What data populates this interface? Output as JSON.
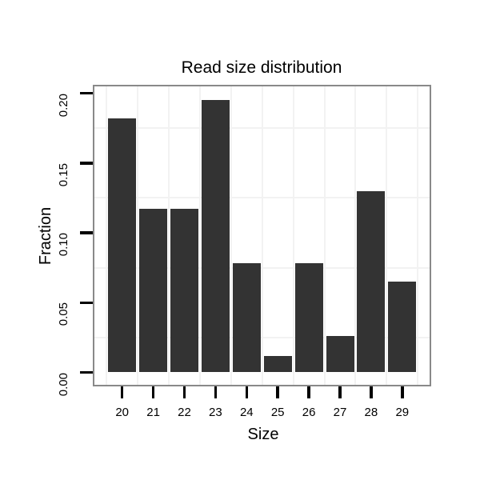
{
  "figure": {
    "background_color": "#ffffff",
    "text_color": "#000000"
  },
  "chart_data": {
    "type": "bar",
    "title": "Read size distribution",
    "xlabel": "Size",
    "ylabel": "Fraction",
    "categories": [
      "20",
      "21",
      "22",
      "23",
      "24",
      "25",
      "26",
      "27",
      "28",
      "29"
    ],
    "values": [
      0.182,
      0.117,
      0.117,
      0.195,
      0.078,
      0.012,
      0.078,
      0.026,
      0.13,
      0.065
    ],
    "x_tick_labels": [
      "20",
      "21",
      "22",
      "23",
      "24",
      "25",
      "26",
      "27",
      "28",
      "29"
    ],
    "y_tick_values": [
      0.0,
      0.05,
      0.1,
      0.15,
      0.2
    ],
    "y_tick_labels": [
      "0.00",
      "0.05",
      "0.10",
      "0.15",
      "0.20"
    ],
    "ylim": [
      -0.01,
      0.205
    ],
    "grid": "minor-only",
    "legend": "none",
    "bar_color": "#333333",
    "panel_border_color": "#898989",
    "gridline_color": "#f2f2f2",
    "tick_color": "#000000"
  }
}
